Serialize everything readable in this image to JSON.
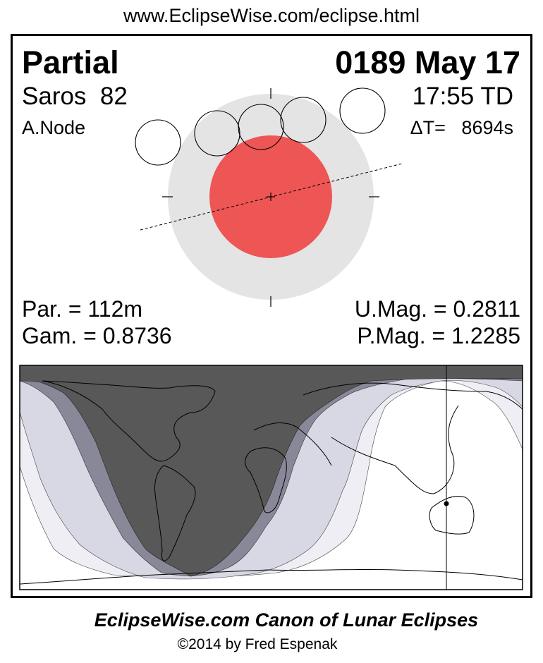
{
  "url": "www.EclipseWise.com/eclipse.html",
  "eclipse_type": "Partial",
  "date": "0189 May 17",
  "saros": "Saros  82",
  "time": "17:55 TD",
  "node": "A.Node",
  "delta_t": "ΔT=   8694s",
  "par": "Par. = 112m",
  "gam": "Gam. = 0.8736",
  "umag": "U.Mag. = 0.2811",
  "pmag": "P.Mag. = 1.2285",
  "footer_title": "EclipseWise.com Canon of Lunar Eclipses",
  "copyright": "©2014 by Fred Espenak",
  "colors": {
    "umbra": "#EE5555",
    "penumbra": "#E4E4E4",
    "night": "#585858",
    "umbral_zone": "#888898",
    "penumbral_zone": "#D8D8E4",
    "partial_penumbral_zone": "#EEEEF4"
  }
}
